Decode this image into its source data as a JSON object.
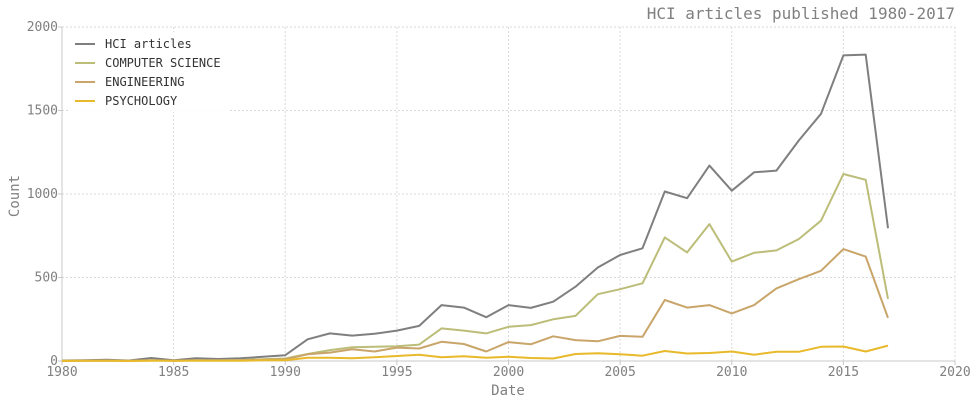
{
  "chart_data": {
    "type": "line",
    "title": "HCI articles published 1980-2017",
    "xlabel": "Date",
    "ylabel": "Count",
    "xlim": [
      1980,
      2020
    ],
    "ylim": [
      0,
      2000
    ],
    "x_ticks": [
      "1980",
      "1985",
      "1990",
      "1995",
      "2000",
      "2005",
      "2010",
      "2015",
      "2020"
    ],
    "y_ticks": [
      "0",
      "500",
      "1000",
      "1500",
      "2000"
    ],
    "grid": true,
    "legend_position": "top-left",
    "x": [
      1980,
      1981,
      1982,
      1983,
      1984,
      1985,
      1986,
      1987,
      1988,
      1989,
      1990,
      1991,
      1992,
      1993,
      1994,
      1995,
      1996,
      1997,
      1998,
      1999,
      2000,
      2001,
      2002,
      2003,
      2004,
      2005,
      2006,
      2007,
      2008,
      2009,
      2010,
      2011,
      2012,
      2013,
      2014,
      2015,
      2016,
      2017
    ],
    "series": [
      {
        "name": "HCI articles",
        "color": "#7f7f7f",
        "values": [
          3,
          5,
          8,
          3,
          18,
          5,
          17,
          12,
          16,
          25,
          35,
          130,
          165,
          152,
          163,
          182,
          210,
          335,
          320,
          262,
          335,
          318,
          355,
          445,
          560,
          635,
          675,
          1015,
          975,
          1170,
          1020,
          1130,
          1140,
          1320,
          1480,
          1830,
          1835,
          795
        ]
      },
      {
        "name": "COMPUTER SCIENCE",
        "color": "#bcbd78",
        "values": [
          1,
          2,
          3,
          1,
          5,
          2,
          5,
          4,
          6,
          10,
          15,
          42,
          65,
          82,
          85,
          88,
          98,
          195,
          182,
          165,
          205,
          215,
          250,
          270,
          400,
          430,
          465,
          740,
          650,
          820,
          595,
          648,
          662,
          730,
          840,
          1120,
          1085,
          372
        ]
      },
      {
        "name": "ENGINEERING",
        "color": "#c9a56a",
        "values": [
          1,
          1,
          2,
          1,
          4,
          2,
          4,
          3,
          5,
          8,
          10,
          40,
          50,
          70,
          57,
          80,
          75,
          115,
          102,
          57,
          113,
          100,
          148,
          125,
          118,
          150,
          145,
          365,
          320,
          335,
          285,
          335,
          435,
          490,
          540,
          670,
          625,
          258
        ]
      },
      {
        "name": "PSYCHOLOGY",
        "color": "#e8b92a",
        "values": [
          0,
          1,
          1,
          0,
          2,
          1,
          2,
          1,
          2,
          4,
          5,
          20,
          20,
          17,
          22,
          30,
          38,
          22,
          28,
          20,
          25,
          18,
          15,
          42,
          47,
          40,
          32,
          60,
          45,
          48,
          57,
          38,
          55,
          55,
          85,
          87,
          57,
          92
        ]
      }
    ]
  }
}
